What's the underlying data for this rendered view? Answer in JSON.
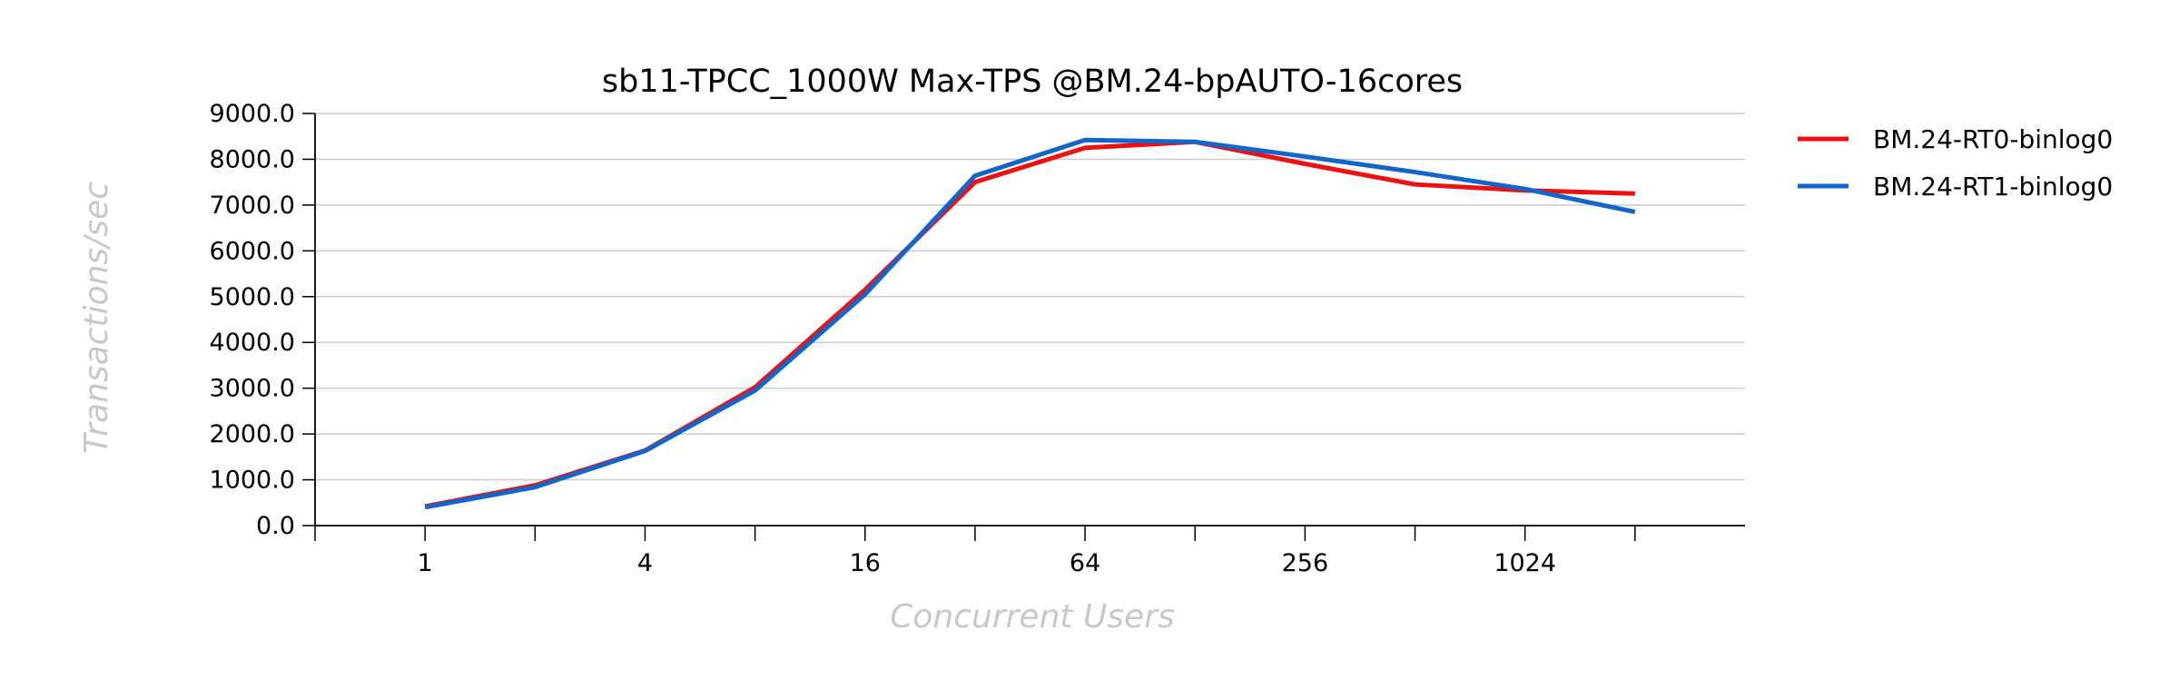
{
  "chart_data": {
    "type": "line",
    "title": "sb11-TPCC_1000W Max-TPS @BM.24-bpAUTO-16cores",
    "xlabel": "Concurrent Users",
    "ylabel": "Transactions/sec",
    "x_scale": "log2",
    "x": [
      1,
      2,
      4,
      8,
      16,
      32,
      64,
      128,
      256,
      512,
      1024,
      2048
    ],
    "x_tick_labels": [
      {
        "x": 1,
        "label": "1"
      },
      {
        "x": 4,
        "label": "4"
      },
      {
        "x": 16,
        "label": "16"
      },
      {
        "x": 64,
        "label": "64"
      },
      {
        "x": 256,
        "label": "256"
      },
      {
        "x": 1024,
        "label": "1024"
      }
    ],
    "ylim": [
      0,
      9000
    ],
    "y_ticks": [
      "0.0",
      "1000.0",
      "2000.0",
      "3000.0",
      "4000.0",
      "5000.0",
      "6000.0",
      "7000.0",
      "8000.0",
      "9000.0"
    ],
    "grid": true,
    "legend_position": "right",
    "series": [
      {
        "name": "BM.24-RT0-binlog0",
        "color": "#ee1111",
        "values": [
          420,
          880,
          1640,
          3020,
          5150,
          7500,
          8250,
          8380,
          7900,
          7450,
          7320,
          7250
        ]
      },
      {
        "name": "BM.24-RT1-binlog0",
        "color": "#1166cc",
        "values": [
          400,
          840,
          1630,
          2950,
          5050,
          7640,
          8420,
          8380,
          8060,
          7720,
          7350,
          6850
        ]
      }
    ]
  }
}
